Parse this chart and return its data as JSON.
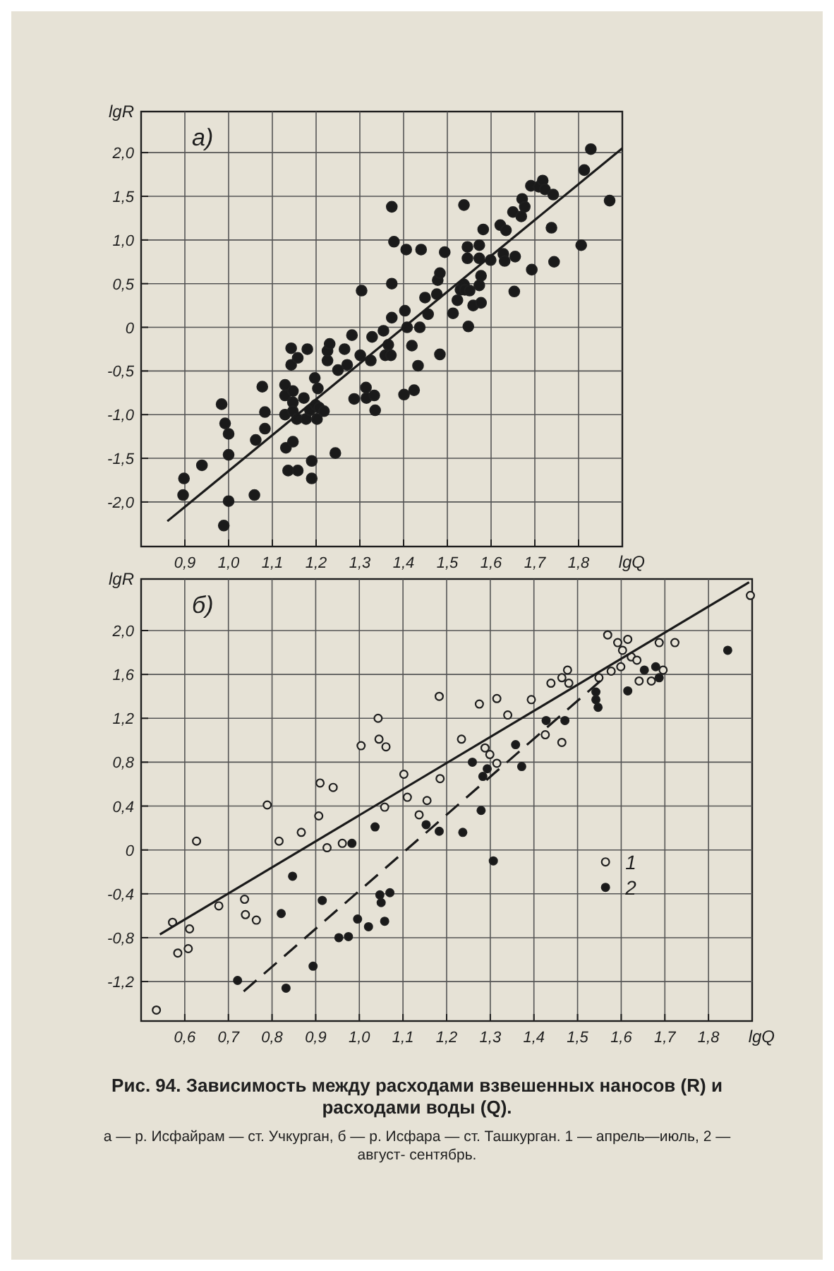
{
  "chart_data": [
    {
      "type": "scatter",
      "title": "а)",
      "xlabel": "lgQ",
      "ylabel": "lgR",
      "xlim": [
        0.8,
        1.9
      ],
      "ylim": [
        -2.51,
        2.47
      ],
      "grid": true,
      "xticks": [
        {
          "value": 0.9,
          "label": "0,9"
        },
        {
          "value": 1.0,
          "label": "1,0"
        },
        {
          "value": 1.1,
          "label": "1,1"
        },
        {
          "value": 1.2,
          "label": "1,2"
        },
        {
          "value": 1.3,
          "label": "1,3"
        },
        {
          "value": 1.4,
          "label": "1,4"
        },
        {
          "value": 1.5,
          "label": "1,5"
        },
        {
          "value": 1.6,
          "label": "1,6"
        },
        {
          "value": 1.7,
          "label": "1,7"
        },
        {
          "value": 1.8,
          "label": "1,8"
        }
      ],
      "yticks": [
        {
          "value": -2,
          "label": "-2,0"
        },
        {
          "value": -1.5,
          "label": "-1,5"
        },
        {
          "value": -1,
          "label": "-1,0"
        },
        {
          "value": -0.5,
          "label": "-0,5"
        },
        0,
        {
          "value": 0.5,
          "label": "0,5"
        },
        {
          "value": 1,
          "label": "1,0"
        },
        {
          "value": 1.5,
          "label": "1,5"
        },
        {
          "value": 2,
          "label": "2,0"
        }
      ],
      "series": [
        {
          "color": "#1a1a1a",
          "marker": "circle",
          "x": [
            0.898,
            0.896,
            0.939,
            0.984,
            0.992,
            1.0,
            1.0,
            1.0,
            0.989,
            1.062,
            1.059,
            1.077,
            1.083,
            1.083,
            1.129,
            1.129,
            1.129,
            1.131,
            1.136,
            1.143,
            1.143,
            1.147,
            1.147,
            1.147,
            1.147,
            1.156,
            1.158,
            1.158,
            1.172,
            1.177,
            1.18,
            1.186,
            1.19,
            1.19,
            1.197,
            1.199,
            1.202,
            1.204,
            1.207,
            1.218,
            1.226,
            1.226,
            1.231,
            1.244,
            1.25,
            1.265,
            1.271,
            1.282,
            1.287,
            1.301,
            1.304,
            1.314,
            1.315,
            1.325,
            1.328,
            1.333,
            1.335,
            1.354,
            1.358,
            1.365,
            1.371,
            1.373,
            1.373,
            1.373,
            1.378,
            1.401,
            1.403,
            1.406,
            1.408,
            1.419,
            1.424,
            1.433,
            1.437,
            1.44,
            1.449,
            1.456,
            1.476,
            1.478,
            1.483,
            1.483,
            1.494,
            1.513,
            1.523,
            1.53,
            1.538,
            1.538,
            1.54,
            1.546,
            1.546,
            1.548,
            1.551,
            1.559,
            1.573,
            1.573,
            1.573,
            1.577,
            1.577,
            1.582,
            1.599,
            1.621,
            1.628,
            1.634,
            1.631,
            1.65,
            1.653,
            1.655,
            1.669,
            1.671,
            1.677,
            1.691,
            1.693,
            1.709,
            1.718,
            1.723,
            1.738,
            1.742,
            1.744,
            1.806,
            1.813,
            1.828,
            1.871
          ],
          "values": [
            -1.73,
            -1.92,
            -1.58,
            -0.88,
            -1.1,
            -1.22,
            -1.46,
            -1.99,
            -2.27,
            -1.29,
            -1.92,
            -0.68,
            -0.97,
            -1.16,
            -0.66,
            -0.78,
            -1.0,
            -1.38,
            -1.64,
            -0.24,
            -0.43,
            -0.73,
            -0.86,
            -0.96,
            -1.31,
            -1.05,
            -1.64,
            -0.35,
            -0.81,
            -1.05,
            -0.25,
            -0.95,
            -1.53,
            -1.73,
            -0.58,
            -0.89,
            -1.05,
            -0.7,
            -0.92,
            -0.96,
            -0.38,
            -0.27,
            -0.19,
            -1.44,
            -0.49,
            -0.25,
            -0.43,
            -0.09,
            -0.82,
            -0.32,
            0.42,
            -0.69,
            -0.81,
            -0.38,
            -0.11,
            -0.78,
            -0.95,
            -0.04,
            -0.32,
            -0.2,
            -0.32,
            0.11,
            0.5,
            1.38,
            0.98,
            -0.77,
            0.19,
            0.89,
            0.0,
            -0.21,
            -0.72,
            -0.44,
            0.0,
            0.89,
            0.34,
            0.15,
            0.38,
            0.54,
            0.62,
            -0.31,
            0.86,
            0.16,
            0.31,
            0.43,
            1.4,
            0.49,
            0.43,
            0.92,
            0.79,
            0.01,
            0.42,
            0.25,
            0.94,
            0.79,
            0.48,
            0.28,
            0.59,
            1.12,
            0.77,
            1.17,
            0.84,
            1.11,
            0.76,
            1.32,
            0.41,
            0.81,
            1.27,
            1.47,
            1.38,
            1.62,
            0.66,
            1.61,
            1.68,
            1.58,
            1.14,
            1.52,
            0.75,
            0.94,
            1.8,
            2.04,
            1.45
          ]
        },
        {
          "type": "line",
          "marker": "none",
          "color": "#1a1a1a",
          "x": [
            0.86,
            1.9
          ],
          "values": [
            -2.22,
            2.05
          ]
        }
      ]
    },
    {
      "type": "scatter",
      "title": "б)",
      "xlabel": "lgQ",
      "ylabel": "lgR",
      "xlim": [
        0.5,
        1.9
      ],
      "ylim": [
        -1.56,
        2.47
      ],
      "grid": true,
      "legend": "bottom right",
      "xticks": [
        {
          "value": 0.6,
          "label": "0,6"
        },
        {
          "value": 0.7,
          "label": "0,7"
        },
        {
          "value": 0.8,
          "label": "0,8"
        },
        {
          "value": 0.9,
          "label": "0,9"
        },
        {
          "value": 1.0,
          "label": "1,0"
        },
        {
          "value": 1.1,
          "label": "1,1"
        },
        {
          "value": 1.2,
          "label": "1,2"
        },
        {
          "value": 1.3,
          "label": "1,3"
        },
        {
          "value": 1.4,
          "label": "1,4"
        },
        {
          "value": 1.5,
          "label": "1,5"
        },
        {
          "value": 1.6,
          "label": "1,6"
        },
        {
          "value": 1.7,
          "label": "1,7"
        },
        {
          "value": 1.8,
          "label": "1,8"
        }
      ],
      "yticks": [
        {
          "value": -1.2,
          "label": "-1,2"
        },
        {
          "value": -0.8,
          "label": "-0,8"
        },
        {
          "value": -0.4,
          "label": "-0,4"
        },
        0,
        {
          "value": 0.4,
          "label": "0,4"
        },
        {
          "value": 0.8,
          "label": "0,8"
        },
        {
          "value": 1.2,
          "label": "1,2"
        },
        {
          "value": 1.6,
          "label": "1,6"
        },
        {
          "value": 2,
          "label": "2,0"
        }
      ],
      "series": [
        {
          "name": "1",
          "color": "#e6e2d6",
          "marker": "circle",
          "x": [
            0.535,
            0.572,
            0.584,
            0.608,
            0.611,
            0.627,
            0.678,
            0.737,
            0.739,
            0.764,
            0.789,
            0.816,
            0.867,
            0.907,
            0.91,
            0.926,
            0.94,
            0.961,
            1.004,
            1.043,
            1.045,
            1.061,
            1.058,
            1.102,
            1.11,
            1.137,
            1.155,
            1.183,
            1.185,
            1.234,
            1.275,
            1.288,
            1.299,
            1.315,
            1.315,
            1.34,
            1.394,
            1.426,
            1.439,
            1.464,
            1.464,
            1.477,
            1.48,
            1.549,
            1.569,
            1.577,
            1.592,
            1.599,
            1.603,
            1.615,
            1.623,
            1.636,
            1.641,
            1.669,
            1.687,
            1.696,
            1.723,
            1.896
          ],
          "values": [
            -1.46,
            -0.66,
            -0.94,
            -0.9,
            -0.72,
            0.08,
            -0.51,
            -0.45,
            -0.59,
            -0.64,
            0.41,
            0.08,
            0.16,
            0.31,
            0.61,
            0.02,
            0.57,
            0.06,
            0.95,
            1.2,
            1.01,
            0.94,
            0.39,
            0.69,
            0.48,
            0.32,
            0.45,
            1.4,
            0.65,
            1.01,
            1.33,
            0.93,
            0.87,
            1.38,
            0.79,
            1.23,
            1.37,
            1.05,
            1.52,
            0.98,
            1.57,
            1.64,
            1.52,
            1.57,
            1.96,
            1.63,
            1.89,
            1.67,
            1.82,
            1.92,
            1.76,
            1.73,
            1.54,
            1.54,
            1.89,
            1.64,
            1.89,
            2.32
          ]
        },
        {
          "name": "2",
          "color": "#1a1a1a",
          "marker": "circle",
          "x": [
            0.721,
            0.821,
            0.832,
            0.847,
            0.894,
            0.915,
            0.953,
            0.975,
            0.983,
            0.996,
            1.021,
            1.036,
            1.047,
            1.05,
            1.058,
            1.07,
            1.153,
            1.183,
            1.237,
            1.259,
            1.279,
            1.283,
            1.293,
            1.307,
            1.358,
            1.372,
            1.428,
            1.471,
            1.542,
            1.542,
            1.547,
            1.615,
            1.653,
            1.679,
            1.687,
            1.844
          ],
          "values": [
            -1.19,
            -0.58,
            -1.26,
            -0.24,
            -1.06,
            -0.46,
            -0.8,
            -0.79,
            0.06,
            -0.63,
            -0.7,
            0.21,
            -0.41,
            -0.48,
            -0.65,
            -0.39,
            0.23,
            0.17,
            0.16,
            0.8,
            0.36,
            0.67,
            0.74,
            -0.1,
            0.96,
            0.76,
            1.18,
            1.18,
            1.44,
            1.37,
            1.3,
            1.45,
            1.64,
            1.67,
            1.57,
            1.82
          ]
        },
        {
          "type": "line",
          "marker": "none",
          "color": "#1a1a1a",
          "x": [
            0.543,
            1.893
          ],
          "values": [
            -0.77,
            2.44
          ]
        },
        {
          "type": "line",
          "marker": "none",
          "color": "#1a1a1a",
          "line_style": "dashed",
          "x": [
            0.735,
            1.552
          ],
          "values": [
            -1.29,
            1.54
          ]
        }
      ],
      "annotations": [
        "Рис. 94. Зависимость между расходами взвешенных наносов (R) и расходами воды (Q).",
        "а — р. Исфайрам — ст. Учкурган, б — р. Исфара — ст. Ташкурган. 1 — апрель—июль, 2 — август- сентябрь."
      ]
    }
  ]
}
